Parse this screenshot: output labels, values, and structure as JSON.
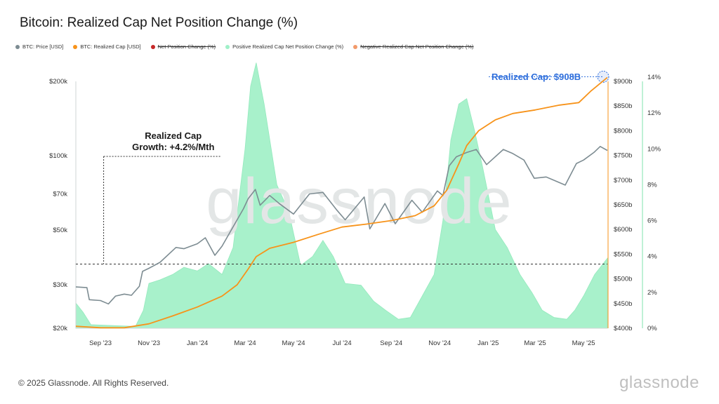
{
  "header": {
    "title": "Bitcoin: Realized Cap Net Position Change (%)"
  },
  "legend": [
    {
      "label": "BTC: Price [USD]",
      "color": "#7d8c92",
      "strike": false
    },
    {
      "label": "BTC: Realized Cap [USD]",
      "color": "#f7931a",
      "strike": false
    },
    {
      "label": "Net Position Change (%)",
      "color": "#c62828",
      "strike": true
    },
    {
      "label": "Positive Realized Cap Net Position Change (%)",
      "color": "#9ff0c8",
      "strike": false
    },
    {
      "label": "Negative Realized Cap Net Position Change (%)",
      "color": "#f29a6a",
      "strike": true
    }
  ],
  "footer": {
    "copyright": "© 2025 Glassnode. All Rights Reserved.",
    "brand": "glassnode"
  },
  "watermark": "glassnode",
  "chart_data": {
    "type": "line",
    "title": "Bitcoin: Realized Cap Net Position Change (%)",
    "x_axis": {
      "start": "2023-08-01",
      "end": "2025-05-31",
      "ticks": [
        "Sep '23",
        "Nov '23",
        "Jan '24",
        "Mar '24",
        "May '24",
        "Jul '24",
        "Sep '24",
        "Nov '24",
        "Jan '25",
        "Mar '25",
        "May '25"
      ]
    },
    "y_left": {
      "label": "BTC: Price [USD]",
      "scale": "log",
      "range": [
        20000,
        200000
      ],
      "ticks": [
        {
          "v": 20000,
          "t": "$20k"
        },
        {
          "v": 30000,
          "t": "$30k"
        },
        {
          "v": 50000,
          "t": "$50k"
        },
        {
          "v": 70000,
          "t": "$70k"
        },
        {
          "v": 100000,
          "t": "$100k"
        },
        {
          "v": 200000,
          "t": "$200k"
        }
      ]
    },
    "y_right1": {
      "label": "BTC: Realized Cap [USD]",
      "scale": "linear",
      "range": [
        400,
        900
      ],
      "ticks": [
        "$400b",
        "$450b",
        "$500b",
        "$550b",
        "$600b",
        "$650b",
        "$700b",
        "$750b",
        "$800b",
        "$850b",
        "$900b"
      ]
    },
    "y_right2": {
      "label": "Net Position Change (%)",
      "scale": "linear",
      "range": [
        0,
        14
      ],
      "ticks": [
        "0%",
        "2%",
        "4%",
        "6%",
        "8%",
        "10%",
        "12%",
        "14%"
      ]
    },
    "series": [
      {
        "name": "BTC: Price [USD]",
        "color": "#7d8c92",
        "points": [
          [
            "2023-08-01",
            29400
          ],
          [
            "2023-08-15",
            29200
          ],
          [
            "2023-08-18",
            26100
          ],
          [
            "2023-09-01",
            25900
          ],
          [
            "2023-09-11",
            25100
          ],
          [
            "2023-09-20",
            27000
          ],
          [
            "2023-10-01",
            27500
          ],
          [
            "2023-10-10",
            27200
          ],
          [
            "2023-10-20",
            29600
          ],
          [
            "2023-10-24",
            34000
          ],
          [
            "2023-11-01",
            35000
          ],
          [
            "2023-11-15",
            37000
          ],
          [
            "2023-12-05",
            42500
          ],
          [
            "2023-12-15",
            42000
          ],
          [
            "2024-01-01",
            44000
          ],
          [
            "2024-01-11",
            46500
          ],
          [
            "2024-01-23",
            39500
          ],
          [
            "2024-02-01",
            43000
          ],
          [
            "2024-02-15",
            51500
          ],
          [
            "2024-02-28",
            61000
          ],
          [
            "2024-03-05",
            67000
          ],
          [
            "2024-03-14",
            73000
          ],
          [
            "2024-03-20",
            63000
          ],
          [
            "2024-04-01",
            69000
          ],
          [
            "2024-04-13",
            64000
          ],
          [
            "2024-05-01",
            58000
          ],
          [
            "2024-05-21",
            70000
          ],
          [
            "2024-06-07",
            71000
          ],
          [
            "2024-06-24",
            60500
          ],
          [
            "2024-07-05",
            55000
          ],
          [
            "2024-07-29",
            68000
          ],
          [
            "2024-08-05",
            50500
          ],
          [
            "2024-08-24",
            64000
          ],
          [
            "2024-09-06",
            53000
          ],
          [
            "2024-09-27",
            66000
          ],
          [
            "2024-10-10",
            59000
          ],
          [
            "2024-10-29",
            72000
          ],
          [
            "2024-11-05",
            69000
          ],
          [
            "2024-11-13",
            91000
          ],
          [
            "2024-11-22",
            99000
          ],
          [
            "2024-12-05",
            103000
          ],
          [
            "2024-12-17",
            106000
          ],
          [
            "2024-12-30",
            92000
          ],
          [
            "2025-01-20",
            106000
          ],
          [
            "2025-02-01",
            102000
          ],
          [
            "2025-02-15",
            96000
          ],
          [
            "2025-02-28",
            81000
          ],
          [
            "2025-03-15",
            82000
          ],
          [
            "2025-04-08",
            76000
          ],
          [
            "2025-04-22",
            93000
          ],
          [
            "2025-05-01",
            96000
          ],
          [
            "2025-05-14",
            103000
          ],
          [
            "2025-05-22",
            109000
          ],
          [
            "2025-05-31",
            105000
          ]
        ]
      },
      {
        "name": "BTC: Realized Cap [USD]",
        "color": "#f7931a",
        "unit": "billion USD",
        "points": [
          [
            "2023-08-01",
            404
          ],
          [
            "2023-09-01",
            401
          ],
          [
            "2023-10-01",
            401
          ],
          [
            "2023-11-01",
            409
          ],
          [
            "2023-12-01",
            425
          ],
          [
            "2024-01-01",
            443
          ],
          [
            "2024-02-01",
            465
          ],
          [
            "2024-02-20",
            488
          ],
          [
            "2024-03-05",
            520
          ],
          [
            "2024-03-15",
            545
          ],
          [
            "2024-04-01",
            562
          ],
          [
            "2024-05-01",
            574
          ],
          [
            "2024-06-01",
            590
          ],
          [
            "2024-07-01",
            605
          ],
          [
            "2024-08-01",
            611
          ],
          [
            "2024-09-01",
            618
          ],
          [
            "2024-10-01",
            628
          ],
          [
            "2024-10-25",
            648
          ],
          [
            "2024-11-10",
            680
          ],
          [
            "2024-11-25",
            733
          ],
          [
            "2024-12-05",
            770
          ],
          [
            "2024-12-20",
            800
          ],
          [
            "2025-01-10",
            822
          ],
          [
            "2025-02-01",
            835
          ],
          [
            "2025-03-01",
            842
          ],
          [
            "2025-04-01",
            852
          ],
          [
            "2025-04-25",
            857
          ],
          [
            "2025-05-10",
            880
          ],
          [
            "2025-05-31",
            908
          ]
        ]
      },
      {
        "name": "Positive Realized Cap Net Position Change (%)",
        "color": "#9ff0c8",
        "type": "area",
        "unit": "percent",
        "points": [
          [
            "2023-08-01",
            1.4
          ],
          [
            "2023-08-10",
            0.9
          ],
          [
            "2023-08-20",
            0.2
          ],
          [
            "2023-10-15",
            0.1
          ],
          [
            "2023-10-25",
            1.0
          ],
          [
            "2023-11-01",
            2.5
          ],
          [
            "2023-11-15",
            2.7
          ],
          [
            "2023-12-01",
            3.0
          ],
          [
            "2023-12-15",
            3.4
          ],
          [
            "2024-01-01",
            3.2
          ],
          [
            "2024-01-15",
            3.6
          ],
          [
            "2024-02-01",
            3.0
          ],
          [
            "2024-02-15",
            4.5
          ],
          [
            "2024-03-01",
            10.0
          ],
          [
            "2024-03-08",
            13.5
          ],
          [
            "2024-03-15",
            14.8
          ],
          [
            "2024-03-25",
            12.5
          ],
          [
            "2024-04-10",
            8.0
          ],
          [
            "2024-04-25",
            6.5
          ],
          [
            "2024-05-10",
            3.5
          ],
          [
            "2024-05-25",
            4.0
          ],
          [
            "2024-06-07",
            4.9
          ],
          [
            "2024-06-20",
            4.0
          ],
          [
            "2024-07-05",
            2.5
          ],
          [
            "2024-07-25",
            2.4
          ],
          [
            "2024-08-10",
            1.5
          ],
          [
            "2024-08-25",
            1.0
          ],
          [
            "2024-09-10",
            0.5
          ],
          [
            "2024-09-25",
            0.6
          ],
          [
            "2024-10-10",
            1.8
          ],
          [
            "2024-10-25",
            3.0
          ],
          [
            "2024-11-05",
            6.0
          ],
          [
            "2024-11-15",
            10.5
          ],
          [
            "2024-11-25",
            12.5
          ],
          [
            "2024-12-05",
            12.8
          ],
          [
            "2024-12-15",
            11.0
          ],
          [
            "2024-12-25",
            9.0
          ],
          [
            "2025-01-10",
            5.5
          ],
          [
            "2025-01-25",
            4.5
          ],
          [
            "2025-02-10",
            3.0
          ],
          [
            "2025-02-25",
            2.0
          ],
          [
            "2025-03-10",
            1.0
          ],
          [
            "2025-03-25",
            0.6
          ],
          [
            "2025-04-10",
            0.5
          ],
          [
            "2025-04-20",
            1.0
          ],
          [
            "2025-05-01",
            1.8
          ],
          [
            "2025-05-15",
            3.0
          ],
          [
            "2025-05-31",
            3.9
          ]
        ]
      }
    ],
    "annotations": [
      {
        "text": [
          "Realized Cap",
          "Growth: +4.2%/Mth"
        ],
        "start": "2023-09-05",
        "end": "2024-01-30",
        "base_cap": 530,
        "top_cap": 748
      },
      {
        "text": "Realized Cap: $908B",
        "date": "2025-05-31",
        "cap": 908
      }
    ],
    "grid": false
  }
}
